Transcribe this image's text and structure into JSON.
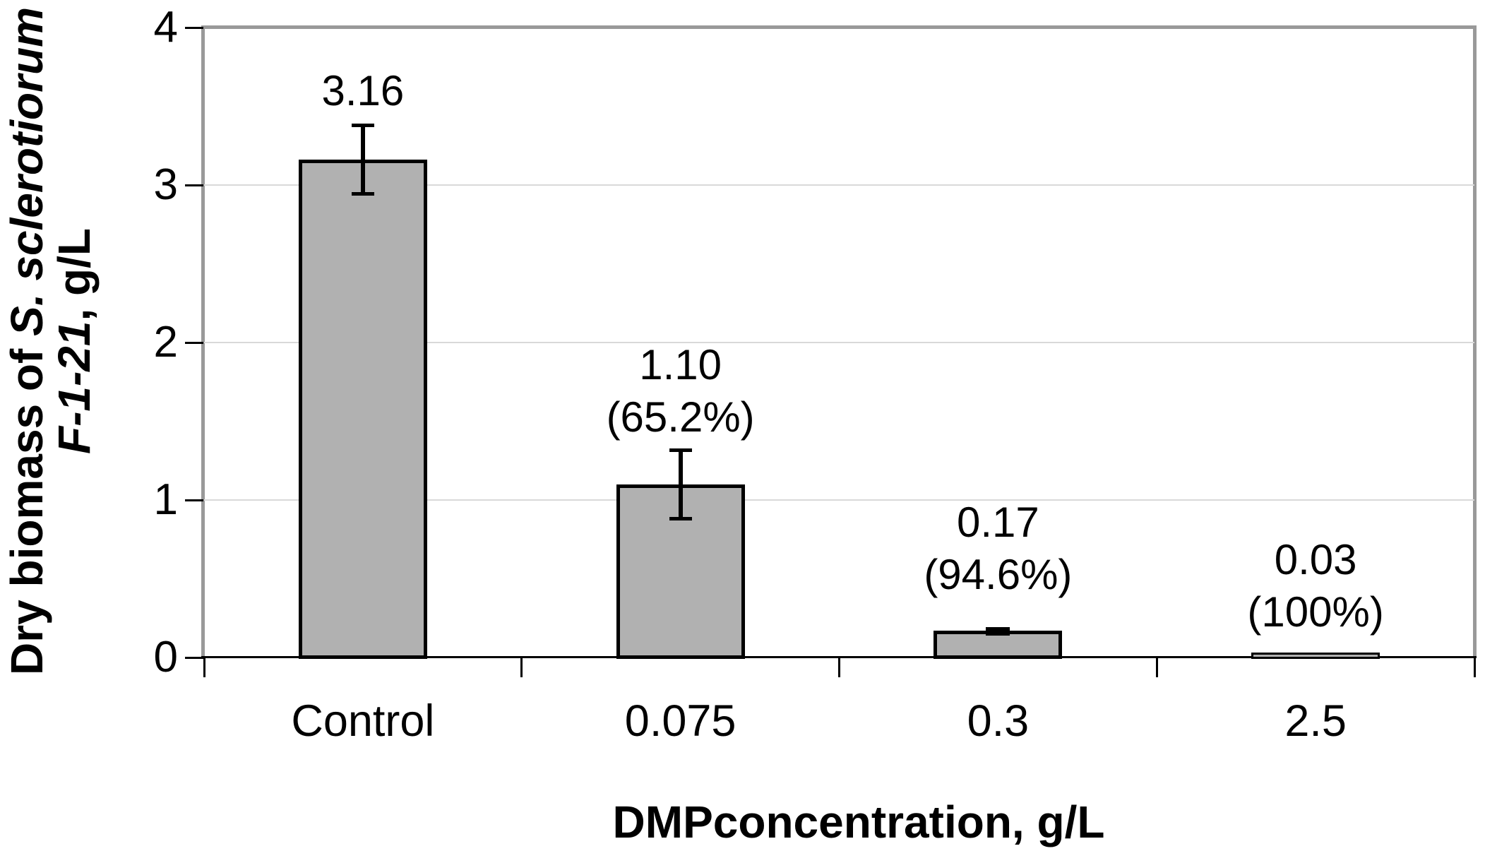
{
  "chart_data": {
    "type": "bar",
    "title": "",
    "categories": [
      "Control",
      "0.075",
      "0.3",
      "2.5"
    ],
    "values": [
      3.16,
      1.1,
      0.17,
      0.03
    ],
    "bars": [
      {
        "category": "Control",
        "value": 3.16,
        "value_label": "3.16",
        "percent_label": "",
        "error": 0.22,
        "label_anchor_y": 3.43
      },
      {
        "category": "0.075",
        "value": 1.1,
        "value_label": "1.10",
        "percent_label": "(65.2%)",
        "error": 0.22,
        "label_anchor_y": 1.36
      },
      {
        "category": "0.3",
        "value": 0.17,
        "value_label": "0.17",
        "percent_label": "(94.6%)",
        "error": 0.01,
        "label_anchor_y": 0.36
      },
      {
        "category": "2.5",
        "value": 0.03,
        "value_label": "0.03",
        "percent_label": "(100%)",
        "error": 0.0,
        "label_anchor_y": 0.12
      }
    ],
    "xlabel": "DMPconcentration, g/L",
    "ylabel": {
      "line1_regular": "Dry biomass of ",
      "line1_italic": "S. sclerotiorum",
      "line2_italic": "F-1-21",
      "line2_regular": ", g/L"
    },
    "ylim": [
      0,
      4
    ],
    "yticks": [
      0,
      1,
      2,
      3,
      4
    ],
    "ytick_labels": [
      "0",
      "1",
      "2",
      "3",
      "4"
    ],
    "grid": true,
    "legend": "none",
    "error_bar_style": "plus-minus, black caps",
    "colors": {
      "background": "#ffffff",
      "bar_fill": "#b1b1b1",
      "bar_border": "#000000",
      "plot_frame": "#999999",
      "gridline": "#d9d9d9",
      "text": "#000000"
    }
  }
}
